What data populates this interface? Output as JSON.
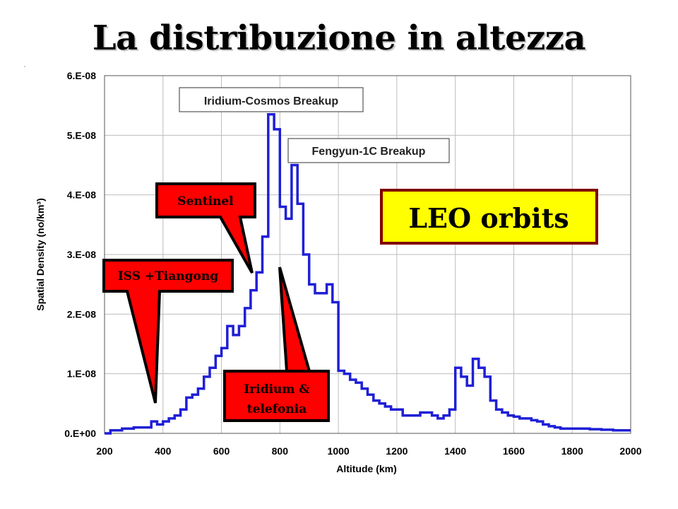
{
  "slide": {
    "title": "La distribuzione in altezza",
    "corner_mark": "\""
  },
  "chart_data": {
    "type": "line",
    "title": "",
    "xlabel": "Altitude (km)",
    "ylabel": "Spatial Density (no/km³)",
    "xlim": [
      200,
      2000
    ],
    "ylim": [
      0,
      6e-08
    ],
    "x_ticks": [
      {
        "value": 200,
        "label": "200"
      },
      {
        "value": 400,
        "label": "400"
      },
      {
        "value": 600,
        "label": "600"
      },
      {
        "value": 800,
        "label": "800"
      },
      {
        "value": 1000,
        "label": "1000"
      },
      {
        "value": 1200,
        "label": "1200"
      },
      {
        "value": 1400,
        "label": "1400"
      },
      {
        "value": 1600,
        "label": "1600"
      },
      {
        "value": 1800,
        "label": "1800"
      },
      {
        "value": 2000,
        "label": "2000"
      }
    ],
    "y_ticks": [
      {
        "value": 0,
        "label": "0.E+00"
      },
      {
        "value": 1e-08,
        "label": "1.E-08"
      },
      {
        "value": 2e-08,
        "label": "2.E-08"
      },
      {
        "value": 3e-08,
        "label": "3.E-08"
      },
      {
        "value": 4e-08,
        "label": "4.E-08"
      },
      {
        "value": 5e-08,
        "label": "5.E-08"
      },
      {
        "value": 6e-08,
        "label": "6.E-08"
      }
    ],
    "grid": true,
    "line_color": "#1f1fd6",
    "step": true,
    "x": [
      200,
      220,
      240,
      260,
      280,
      300,
      320,
      340,
      360,
      380,
      400,
      420,
      440,
      460,
      480,
      500,
      520,
      540,
      560,
      580,
      600,
      620,
      640,
      660,
      680,
      700,
      720,
      740,
      760,
      780,
      800,
      820,
      840,
      860,
      880,
      900,
      920,
      940,
      960,
      980,
      1000,
      1020,
      1040,
      1060,
      1080,
      1100,
      1120,
      1140,
      1160,
      1180,
      1200,
      1220,
      1240,
      1260,
      1280,
      1300,
      1320,
      1340,
      1360,
      1380,
      1400,
      1420,
      1440,
      1460,
      1480,
      1500,
      1520,
      1540,
      1560,
      1580,
      1600,
      1620,
      1640,
      1660,
      1680,
      1700,
      1720,
      1740,
      1760,
      1780,
      1800,
      1820,
      1840,
      1860,
      1880,
      1900,
      1920,
      1940,
      1960,
      1980
    ],
    "y": [
      0.0,
      5e-10,
      5e-10,
      8e-10,
      8e-10,
      1e-09,
      1e-09,
      1e-09,
      2e-09,
      1.5e-09,
      2e-09,
      2.5e-09,
      3e-09,
      4e-09,
      6e-09,
      6.5e-09,
      7.5e-09,
      9.5e-09,
      1.1e-08,
      1.3e-08,
      1.43e-08,
      1.8e-08,
      1.65e-08,
      1.8e-08,
      2.1e-08,
      2.4e-08,
      2.7e-08,
      3.3e-08,
      5.35e-08,
      5.1e-08,
      3.8e-08,
      3.6e-08,
      4.5e-08,
      3.85e-08,
      3e-08,
      2.5e-08,
      2.35e-08,
      2.35e-08,
      2.5e-08,
      2.2e-08,
      1.05e-08,
      1e-08,
      9e-09,
      8.5e-09,
      7.5e-09,
      6.5e-09,
      5.5e-09,
      5e-09,
      4.5e-09,
      4e-09,
      4e-09,
      3e-09,
      3e-09,
      3e-09,
      3.5e-09,
      3.5e-09,
      3e-09,
      2.5e-09,
      3e-09,
      4e-09,
      1.1e-08,
      9.5e-09,
      8e-09,
      1.25e-08,
      1.1e-08,
      9.5e-09,
      5.5e-09,
      4e-09,
      3.5e-09,
      3e-09,
      2.8e-09,
      2.5e-09,
      2.5e-09,
      2.2e-09,
      2e-09,
      1.5e-09,
      1.2e-09,
      1e-09,
      8e-10,
      8e-10,
      8e-10,
      8e-10,
      8e-10,
      7e-10,
      7e-10,
      6e-10,
      6e-10,
      5e-10,
      5e-10,
      5e-10
    ],
    "annotations": [
      {
        "id": "iridium-cosmos",
        "text": "Iridium-Cosmos Breakup",
        "style": "box"
      },
      {
        "id": "fengyun",
        "text": "Fengyun-1C Breakup",
        "style": "box"
      },
      {
        "id": "sentinel",
        "text": "Sentinel",
        "style": "red-callout",
        "points_to": 720
      },
      {
        "id": "iss",
        "text": "ISS +Tiangong",
        "style": "red-callout",
        "points_to": 380
      },
      {
        "id": "iridium-tel",
        "text_lines": [
          "Iridium &",
          "telefonia"
        ],
        "style": "red-callout",
        "points_to": 790
      },
      {
        "id": "leo",
        "text": "LEO orbits",
        "style": "yellow-box"
      }
    ],
    "colors": {
      "callout_fill": "#ff0000",
      "leo_fill": "#ffff00",
      "leo_border": "#800000"
    }
  }
}
